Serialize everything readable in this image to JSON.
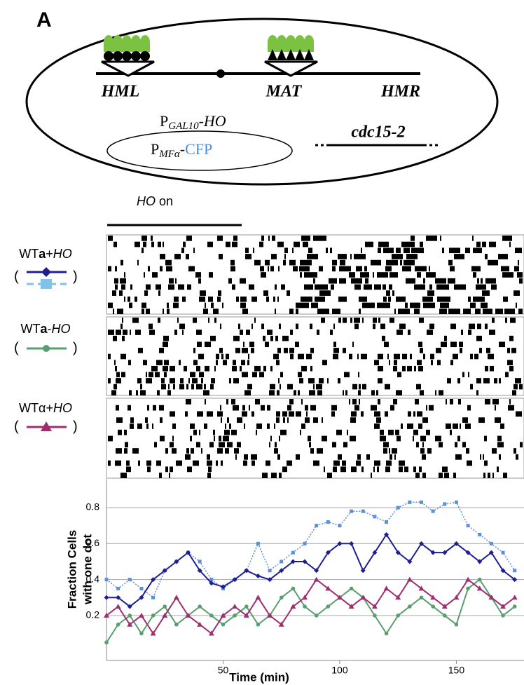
{
  "panel_label": "A",
  "diagram": {
    "loci": [
      "HML",
      "MAT",
      "HMR"
    ],
    "promoter_ho": [
      "P",
      "GAL10",
      "-",
      "HO"
    ],
    "reporter": [
      "P",
      "MFα",
      "-",
      "CFP"
    ],
    "mutation": "cdc15-2"
  },
  "ho_on": [
    "HO",
    " on"
  ],
  "conditions": [
    {
      "parts": [
        "WT",
        "a",
        "+",
        "HO"
      ],
      "open": "(",
      "close": ")"
    },
    {
      "parts": [
        "WT",
        "a",
        "-",
        "HO"
      ],
      "open": "(",
      "close": ")"
    },
    {
      "parts": [
        "WTα",
        "+",
        "HO"
      ],
      "open": "(",
      "close": ")"
    }
  ],
  "chart_data": {
    "type": "line",
    "ylabel": [
      "Fraction Cells",
      "with one dot"
    ],
    "xlabel": "Time (min)",
    "x": [
      0,
      5,
      10,
      15,
      20,
      25,
      30,
      35,
      40,
      45,
      50,
      55,
      60,
      65,
      70,
      75,
      80,
      85,
      90,
      95,
      100,
      105,
      110,
      115,
      120,
      125,
      130,
      135,
      140,
      145,
      150,
      155,
      160,
      165,
      170,
      175
    ],
    "xlim": [
      0,
      179
    ],
    "xticks": [
      50,
      100,
      150
    ],
    "ylim": [
      -0.05,
      0.96
    ],
    "yticks": [
      0.2,
      0.4,
      0.6,
      0.8
    ],
    "grid": true,
    "series": [
      {
        "color": "#5b8fd6",
        "marker": "square",
        "dash": true,
        "values": [
          0.4,
          0.35,
          0.4,
          0.35,
          0.3,
          0.45,
          0.5,
          0.55,
          0.5,
          0.4,
          0.35,
          0.4,
          0.45,
          0.6,
          0.45,
          0.5,
          0.55,
          0.6,
          0.7,
          0.72,
          0.7,
          0.78,
          0.78,
          0.75,
          0.72,
          0.8,
          0.83,
          0.83,
          0.78,
          0.82,
          0.83,
          0.7,
          0.65,
          0.6,
          0.55,
          0.45
        ]
      },
      {
        "color": "#1f1f8f",
        "marker": "diamond",
        "dash": false,
        "values": [
          0.3,
          0.3,
          0.25,
          0.3,
          0.4,
          0.45,
          0.5,
          0.55,
          0.45,
          0.38,
          0.36,
          0.4,
          0.45,
          0.42,
          0.4,
          0.45,
          0.5,
          0.5,
          0.45,
          0.55,
          0.6,
          0.6,
          0.45,
          0.55,
          0.65,
          0.55,
          0.5,
          0.6,
          0.55,
          0.55,
          0.6,
          0.55,
          0.5,
          0.55,
          0.45,
          0.4
        ]
      },
      {
        "color": "#5a9e6f",
        "marker": "circle",
        "dash": false,
        "values": [
          0.05,
          0.15,
          0.2,
          0.1,
          0.2,
          0.25,
          0.15,
          0.2,
          0.25,
          0.2,
          0.15,
          0.2,
          0.25,
          0.15,
          0.2,
          0.3,
          0.35,
          0.25,
          0.2,
          0.25,
          0.3,
          0.35,
          0.3,
          0.2,
          0.1,
          0.2,
          0.25,
          0.3,
          0.25,
          0.2,
          0.15,
          0.35,
          0.4,
          0.3,
          0.2,
          0.25
        ]
      },
      {
        "color": "#9e2f6e",
        "marker": "triangle",
        "dash": false,
        "values": [
          0.2,
          0.25,
          0.15,
          0.2,
          0.1,
          0.2,
          0.3,
          0.2,
          0.15,
          0.1,
          0.2,
          0.25,
          0.2,
          0.3,
          0.2,
          0.15,
          0.25,
          0.3,
          0.4,
          0.35,
          0.3,
          0.25,
          0.3,
          0.25,
          0.35,
          0.3,
          0.4,
          0.35,
          0.3,
          0.25,
          0.3,
          0.4,
          0.35,
          0.3,
          0.25,
          0.3
        ]
      }
    ]
  }
}
